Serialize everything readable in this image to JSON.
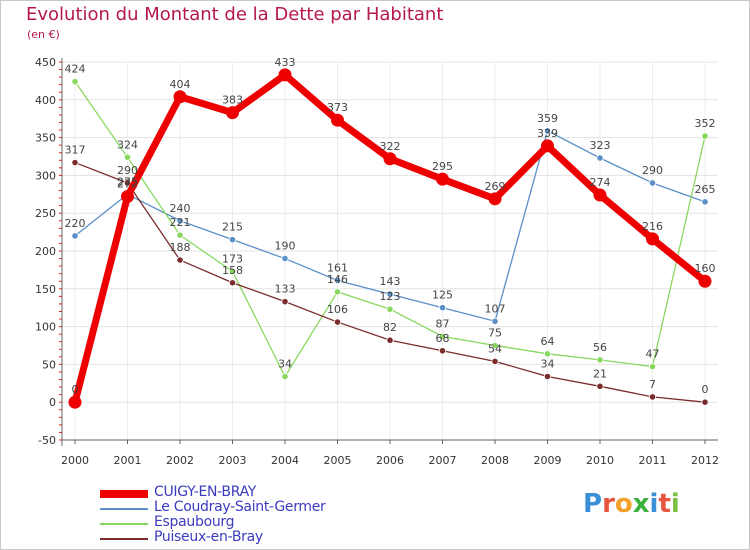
{
  "title": "Evolution du Montant de la Dette par Habitant",
  "unit": "(en €)",
  "logo": {
    "text": "Proxiti",
    "letter_colors": [
      "#3a8fd6",
      "#e8553e",
      "#f2a02a",
      "#3cb13c",
      "#3a8fd6",
      "#e8553e",
      "#7bc043"
    ]
  },
  "chart_data": {
    "type": "line",
    "title": "Evolution du Montant de la Dette par Habitant",
    "ylabel": "(en €)",
    "x": [
      "2000",
      "2001",
      "2002",
      "2003",
      "2004",
      "2005",
      "2006",
      "2007",
      "2008",
      "2009",
      "2010",
      "2011",
      "2012"
    ],
    "ylim": [
      -50,
      450
    ],
    "yticks": [
      -50,
      0,
      50,
      100,
      150,
      200,
      250,
      300,
      350,
      400,
      450
    ],
    "grid": true,
    "legend_position": "bottom-left",
    "series": [
      {
        "name": "CUIGY-EN-BRAY",
        "color": "#ee0000",
        "values": [
          0,
          272,
          404,
          383,
          433,
          373,
          322,
          295,
          269,
          339,
          274,
          216,
          160
        ],
        "labels": [
          "0",
          "272",
          "404",
          "383",
          "433",
          "373",
          "322",
          "295",
          "269",
          "339",
          "274",
          "216",
          "160"
        ],
        "thick": true
      },
      {
        "name": "Le Coudray-Saint-Germer",
        "color": "#5a8fc7",
        "values": [
          220,
          275,
          240,
          215,
          190,
          161,
          143,
          125,
          107,
          359,
          323,
          290,
          265
        ],
        "labels": [
          "220",
          "275",
          "240",
          "215",
          "190",
          "161",
          "143",
          "125",
          "107",
          "359",
          "323",
          "290",
          "265"
        ]
      },
      {
        "name": "Espaubourg",
        "color": "#88d860",
        "values": [
          424,
          324,
          221,
          173,
          34,
          146,
          123,
          87,
          75,
          64,
          56,
          47,
          352
        ],
        "labels": [
          "424",
          "324",
          "221",
          "173",
          "34",
          "146",
          "123",
          "87",
          "75",
          "64",
          "56",
          "47",
          "352"
        ]
      },
      {
        "name": "Puiseux-en-Bray",
        "color": "#7a2c2c",
        "values": [
          317,
          290,
          188,
          158,
          133,
          106,
          82,
          68,
          54,
          34,
          21,
          7,
          0
        ],
        "labels": [
          "317",
          "290",
          "188",
          "158",
          "133",
          "106",
          "82",
          "68",
          "54",
          "34",
          "21",
          "7",
          "0"
        ]
      }
    ]
  }
}
